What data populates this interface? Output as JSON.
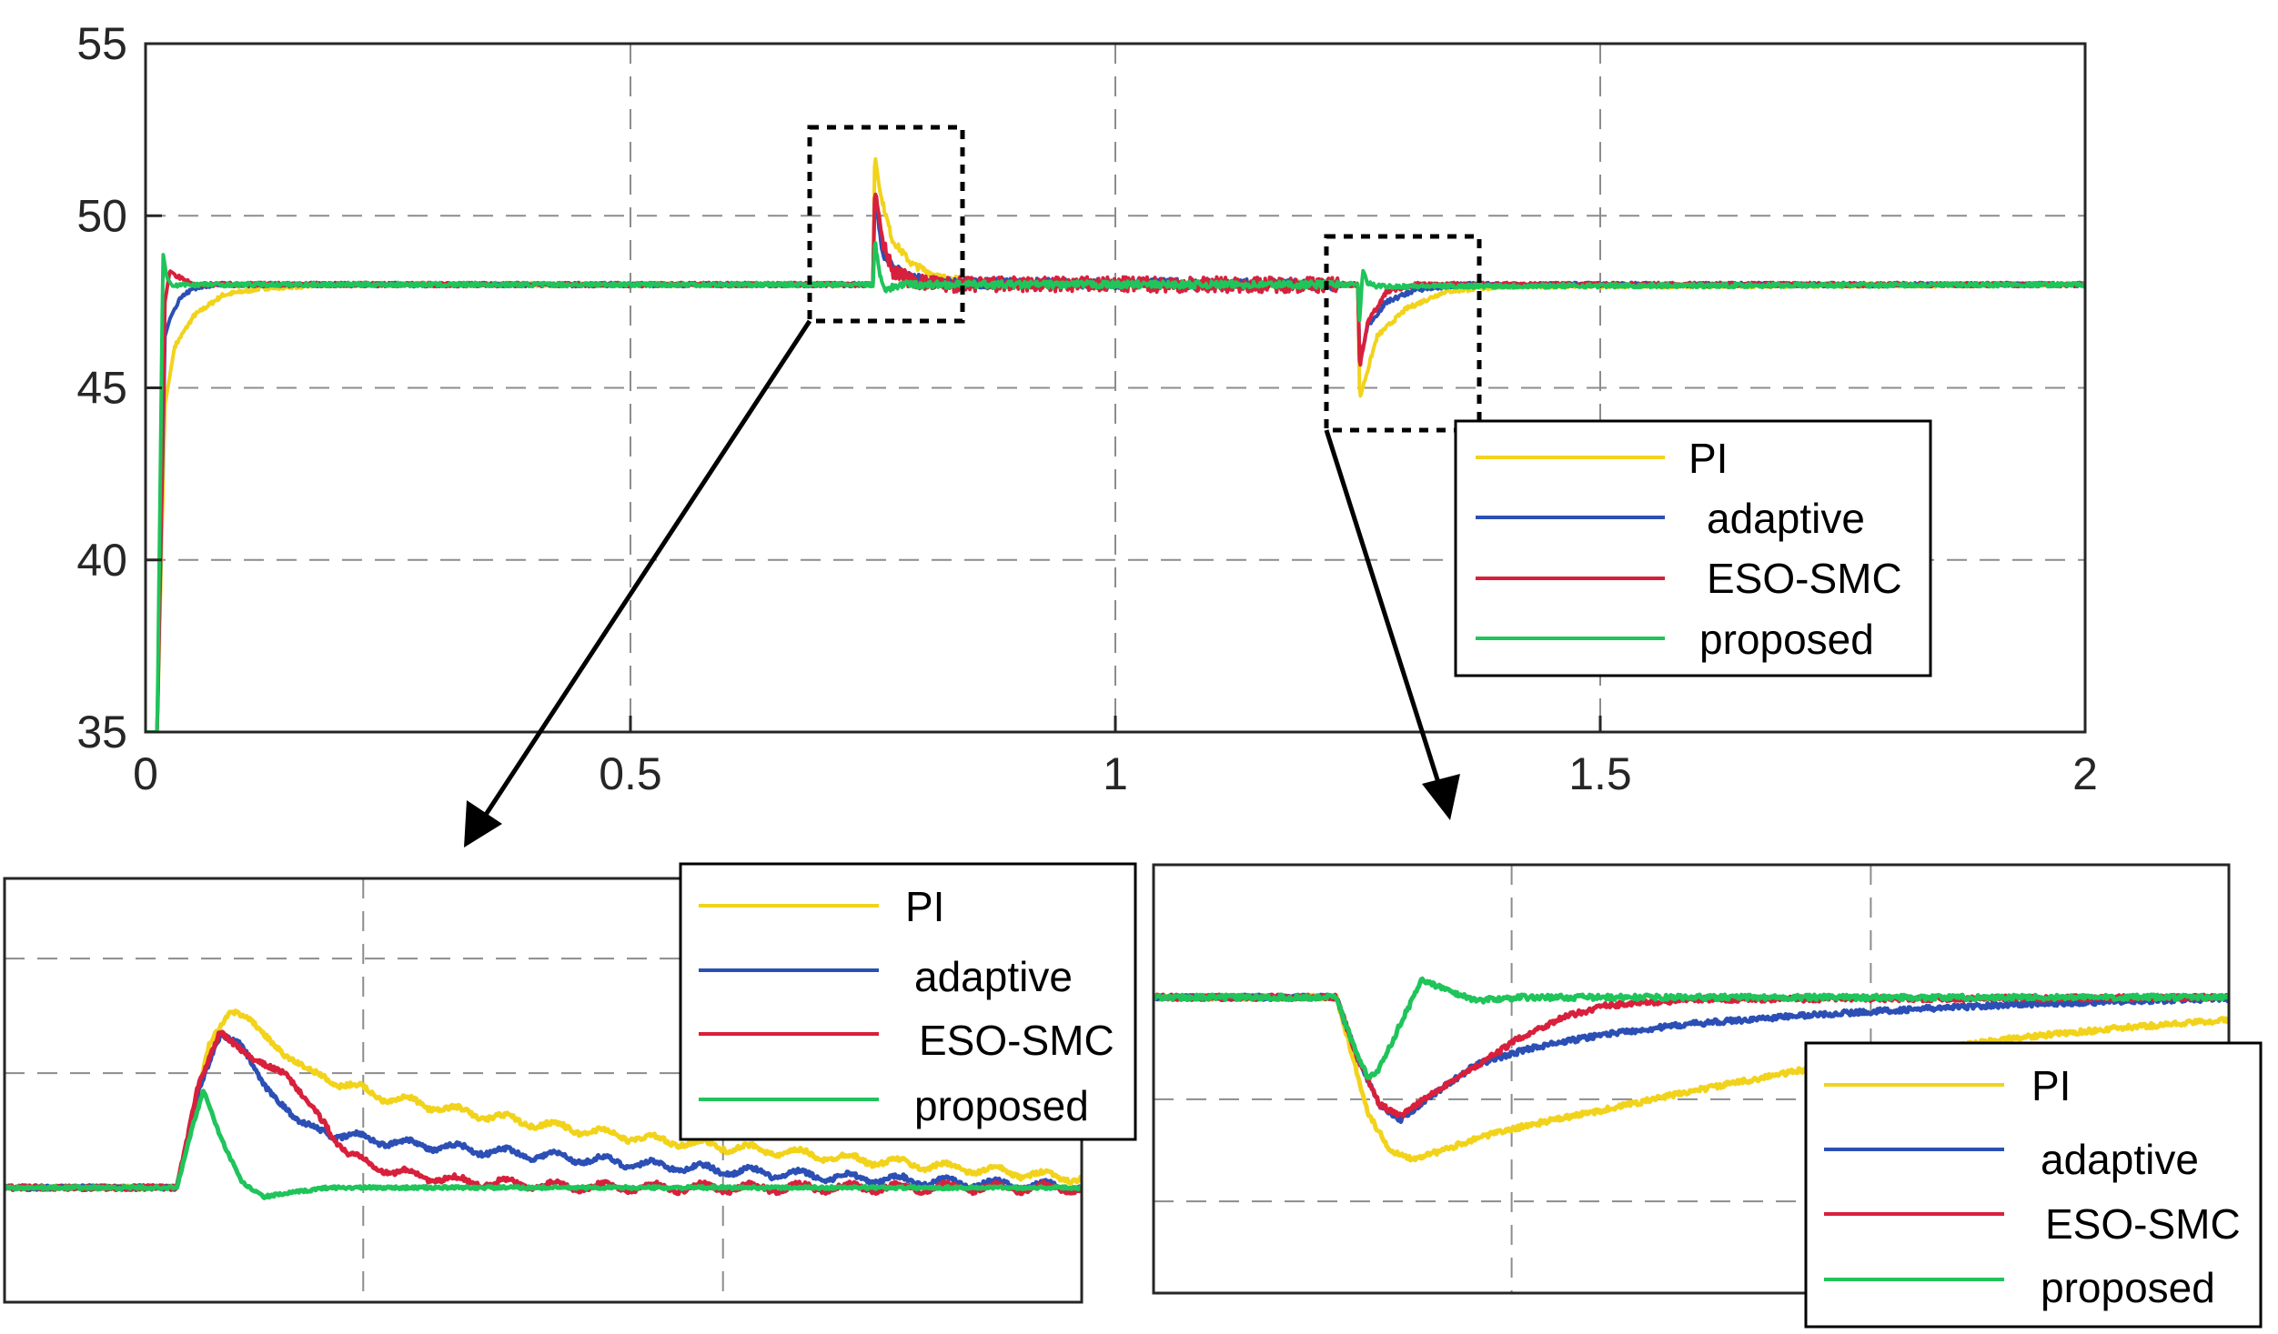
{
  "colors": {
    "PI": "#f2d31b",
    "adaptive": "#2b4fb5",
    "ESO-SMC": "#d8203c",
    "proposed": "#1fc45a",
    "grid": "#8c8c8c",
    "axes": "#262626"
  },
  "chart_data": [
    {
      "type": "line",
      "title": "",
      "xlabel": "",
      "ylabel": "",
      "xlim": [
        0,
        2
      ],
      "ylim": [
        35,
        55
      ],
      "x_ticks": [
        "0",
        "0.5",
        "1",
        "1.5",
        "2"
      ],
      "y_ticks": [
        "35",
        "40",
        "45",
        "50",
        "55"
      ],
      "grid": true,
      "legend_position": "bottom-right",
      "series": [
        {
          "name": "PI",
          "x": [
            0,
            0.012,
            0.02,
            0.03,
            0.05,
            0.08,
            0.12,
            0.2,
            0.75,
            0.752,
            0.758,
            0.77,
            0.79,
            0.82,
            0.86,
            1.25,
            1.252,
            1.258,
            1.27,
            1.3,
            1.34,
            1.4,
            2.0
          ],
          "values": [
            35,
            35,
            44.5,
            46.2,
            47.1,
            47.7,
            47.9,
            48,
            48,
            51.8,
            50.6,
            49.3,
            48.6,
            48.2,
            48.05,
            48,
            44.7,
            45.3,
            46.5,
            47.3,
            47.8,
            47.95,
            48
          ]
        },
        {
          "name": "adaptive",
          "x": [
            0,
            0.012,
            0.02,
            0.025,
            0.035,
            0.05,
            0.07,
            0.1,
            0.75,
            0.752,
            0.76,
            0.77,
            0.79,
            0.82,
            1.25,
            1.252,
            1.26,
            1.28,
            1.31,
            1.36,
            2.0
          ],
          "values": [
            35,
            35,
            46.5,
            47,
            47.6,
            47.9,
            48,
            48,
            48,
            50.6,
            48.9,
            48.5,
            48.2,
            48.05,
            48,
            45.7,
            46.8,
            47.5,
            47.85,
            48,
            48
          ]
        },
        {
          "name": "ESO-SMC",
          "x": [
            0,
            0.012,
            0.02,
            0.025,
            0.035,
            0.05,
            0.75,
            0.752,
            0.76,
            0.77,
            0.79,
            0.82,
            1.25,
            1.252,
            1.26,
            1.28,
            1.31,
            2.0
          ],
          "values": [
            35,
            35,
            47.5,
            48.4,
            48.2,
            48,
            48,
            50.8,
            49.3,
            48.4,
            48.1,
            48,
            48,
            45.6,
            46.9,
            47.8,
            48,
            48
          ]
        },
        {
          "name": "proposed",
          "x": [
            0,
            0.012,
            0.018,
            0.022,
            0.028,
            0.04,
            0.75,
            0.752,
            0.757,
            0.763,
            0.78,
            1.25,
            1.252,
            1.255,
            1.26,
            1.27,
            2.0
          ],
          "values": [
            35,
            35,
            48.9,
            48.2,
            47.95,
            48,
            48,
            49.3,
            48.3,
            47.85,
            48,
            48,
            46.9,
            48.4,
            48.05,
            47.95,
            48
          ]
        }
      ]
    },
    {
      "type": "line",
      "title": "",
      "xlabel": "",
      "ylabel": "",
      "x_ticks": [],
      "y_ticks": [],
      "grid": true,
      "legend_position": "top-right",
      "series": [
        {
          "name": "PI",
          "x": [
            0,
            0.16,
            0.19,
            0.21,
            0.23,
            0.26,
            0.3,
            0.35,
            0.42,
            0.5,
            0.6,
            0.7,
            0.8,
            0.9,
            1.0
          ],
          "values": [
            0,
            0,
            1.25,
            1.55,
            1.45,
            1.15,
            0.95,
            0.8,
            0.67,
            0.55,
            0.42,
            0.33,
            0.24,
            0.16,
            0.08
          ]
        },
        {
          "name": "adaptive",
          "x": [
            0,
            0.16,
            0.18,
            0.2,
            0.22,
            0.24,
            0.27,
            0.3,
            0.34,
            0.4,
            0.5,
            0.6,
            0.7,
            0.8,
            0.9,
            1.0
          ],
          "values": [
            0,
            0,
            0.85,
            1.33,
            1.25,
            0.9,
            0.6,
            0.48,
            0.42,
            0.36,
            0.28,
            0.2,
            0.13,
            0.08,
            0.04,
            0.0
          ]
        },
        {
          "name": "ESO-SMC",
          "x": [
            0,
            0.16,
            0.18,
            0.2,
            0.23,
            0.26,
            0.29,
            0.32,
            0.36,
            0.42,
            0.5,
            0.6,
            1.0
          ],
          "values": [
            0,
            0,
            0.9,
            1.36,
            1.12,
            1.0,
            0.65,
            0.28,
            0.14,
            0.06,
            0.02,
            0.0,
            0.0
          ]
        },
        {
          "name": "proposed",
          "x": [
            0,
            0.16,
            0.175,
            0.185,
            0.2,
            0.22,
            0.24,
            0.3,
            1.0
          ],
          "values": [
            0,
            0,
            0.55,
            0.85,
            0.45,
            0.05,
            -0.08,
            0.0,
            0.0
          ]
        }
      ]
    },
    {
      "type": "line",
      "title": "",
      "xlabel": "",
      "ylabel": "",
      "x_ticks": [],
      "y_ticks": [],
      "grid": true,
      "legend_position": "bottom-right",
      "series": [
        {
          "name": "PI",
          "x": [
            0,
            0.17,
            0.2,
            0.22,
            0.24,
            0.27,
            0.3,
            0.35,
            0.42,
            0.5,
            0.6,
            0.7,
            0.8,
            0.9,
            1.0
          ],
          "values": [
            0,
            0,
            -1.15,
            -1.5,
            -1.58,
            -1.5,
            -1.38,
            -1.25,
            -1.1,
            -0.92,
            -0.72,
            -0.55,
            -0.4,
            -0.3,
            -0.22
          ]
        },
        {
          "name": "adaptive",
          "x": [
            0,
            0.17,
            0.19,
            0.21,
            0.23,
            0.26,
            0.3,
            0.35,
            0.42,
            0.5,
            0.6,
            0.7,
            0.8,
            0.9,
            1.0
          ],
          "values": [
            0,
            0,
            -0.6,
            -1.05,
            -1.2,
            -0.95,
            -0.66,
            -0.5,
            -0.36,
            -0.26,
            -0.18,
            -0.12,
            -0.07,
            -0.04,
            -0.01
          ]
        },
        {
          "name": "ESO-SMC",
          "x": [
            0,
            0.17,
            0.19,
            0.21,
            0.23,
            0.26,
            0.3,
            0.34,
            0.38,
            0.42,
            0.5,
            1.0
          ],
          "values": [
            0,
            0,
            -0.6,
            -1.05,
            -1.17,
            -0.93,
            -0.68,
            -0.4,
            -0.2,
            -0.08,
            -0.02,
            0.0
          ]
        },
        {
          "name": "proposed",
          "x": [
            0,
            0.17,
            0.185,
            0.2,
            0.21,
            0.23,
            0.25,
            0.27,
            0.3,
            0.34,
            1.0
          ],
          "values": [
            0,
            0,
            -0.45,
            -0.8,
            -0.7,
            -0.25,
            0.18,
            0.08,
            -0.03,
            0.0,
            0.0
          ]
        }
      ]
    }
  ]
}
